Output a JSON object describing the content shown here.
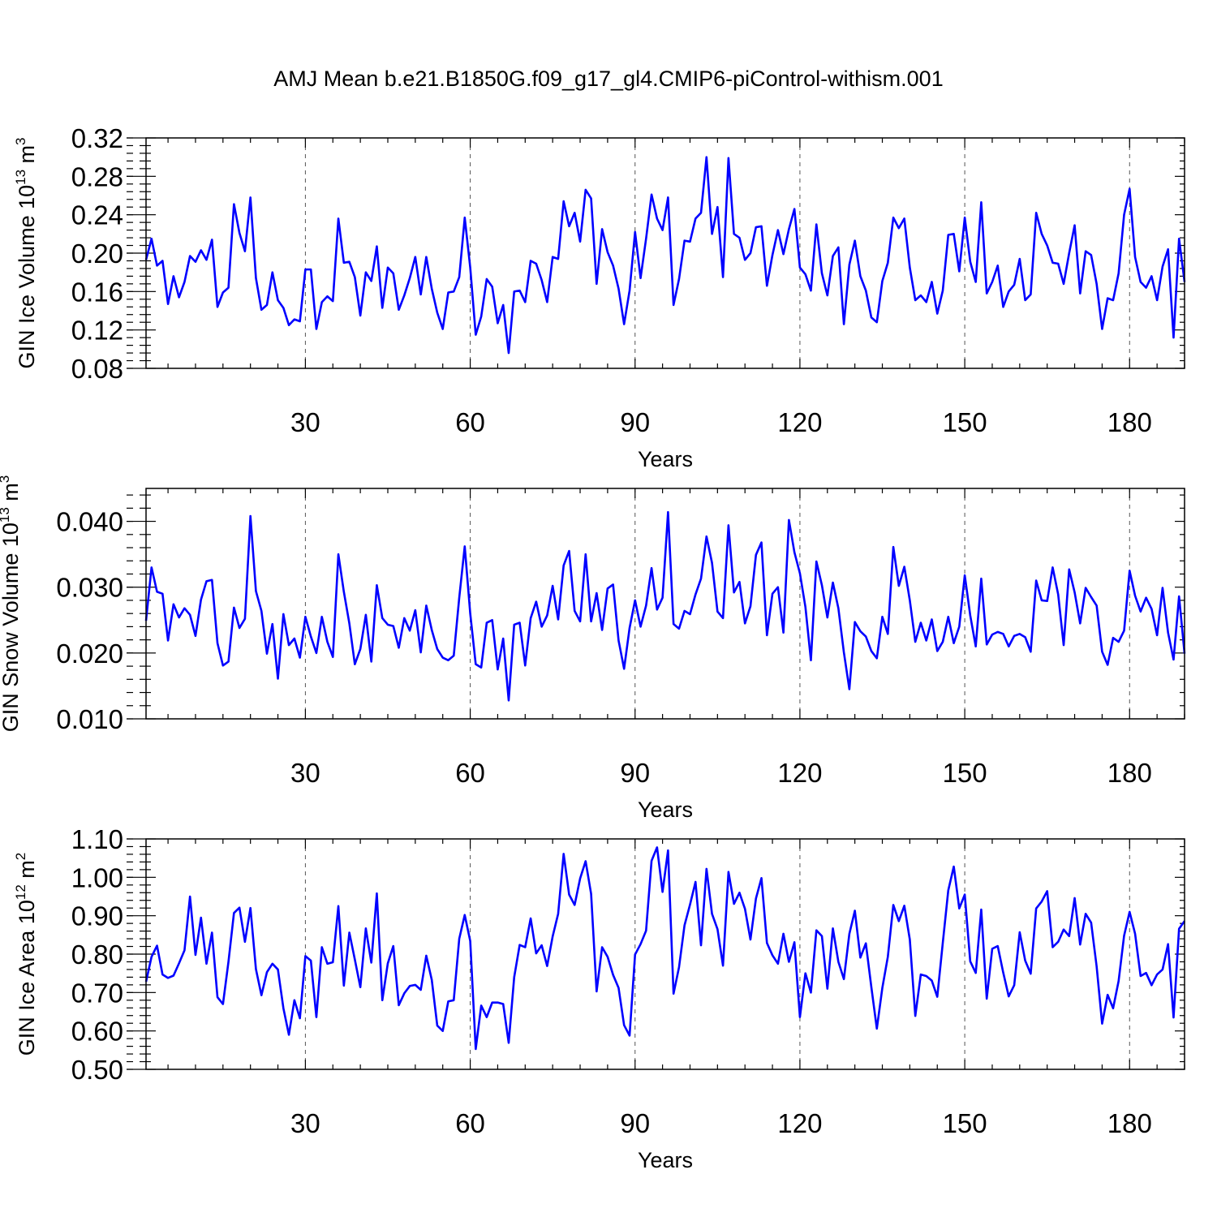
{
  "title": "AMJ Mean b.e21.B1850G.f09_g17_gl4.CMIP6-piControl-withism.001",
  "colors": {
    "series": "#0000ff",
    "frame": "#000000",
    "grid": "#555555"
  },
  "chart_data": [
    {
      "type": "line",
      "name": "ice-volume",
      "ylabel": "GIN Ice Volume 10",
      "ylabel_exp": "13",
      "ylabel_unit": " m",
      "ylabel_unit_exp": "3",
      "xlabel": "Years",
      "xlim": [
        1,
        190
      ],
      "ylim": [
        0.08,
        0.32
      ],
      "yticks": [
        "0.08",
        "0.12",
        "0.16",
        "0.20",
        "0.24",
        "0.28",
        "0.32"
      ],
      "xticks": [
        "30",
        "60",
        "90",
        "120",
        "150",
        "180"
      ],
      "grid_x": [
        30,
        60,
        90,
        120,
        150,
        180
      ],
      "series": [
        {
          "name": "GIN Ice Volume",
          "values": [
            0.193,
            0.215,
            0.187,
            0.192,
            0.147,
            0.176,
            0.154,
            0.17,
            0.197,
            0.191,
            0.203,
            0.193,
            0.214,
            0.144,
            0.159,
            0.164,
            0.251,
            0.221,
            0.202,
            0.258,
            0.174,
            0.141,
            0.146,
            0.18,
            0.151,
            0.143,
            0.125,
            0.131,
            0.129,
            0.183,
            0.183,
            0.121,
            0.149,
            0.155,
            0.15,
            0.236,
            0.19,
            0.191,
            0.175,
            0.135,
            0.18,
            0.171,
            0.207,
            0.143,
            0.185,
            0.179,
            0.141,
            0.156,
            0.174,
            0.196,
            0.157,
            0.196,
            0.163,
            0.138,
            0.121,
            0.159,
            0.16,
            0.175,
            0.237,
            0.185,
            0.115,
            0.134,
            0.173,
            0.165,
            0.127,
            0.146,
            0.096,
            0.16,
            0.161,
            0.149,
            0.192,
            0.189,
            0.172,
            0.149,
            0.196,
            0.194,
            0.254,
            0.228,
            0.242,
            0.212,
            0.266,
            0.257,
            0.168,
            0.225,
            0.201,
            0.187,
            0.163,
            0.126,
            0.161,
            0.222,
            0.174,
            0.215,
            0.261,
            0.236,
            0.224,
            0.258,
            0.146,
            0.173,
            0.213,
            0.212,
            0.236,
            0.242,
            0.3,
            0.22,
            0.248,
            0.175,
            0.299,
            0.22,
            0.216,
            0.193,
            0.2,
            0.227,
            0.228,
            0.166,
            0.198,
            0.224,
            0.199,
            0.225,
            0.246,
            0.185,
            0.178,
            0.161,
            0.23,
            0.179,
            0.156,
            0.197,
            0.206,
            0.126,
            0.188,
            0.213,
            0.176,
            0.161,
            0.133,
            0.128,
            0.171,
            0.19,
            0.237,
            0.226,
            0.236,
            0.185,
            0.151,
            0.156,
            0.149,
            0.17,
            0.137,
            0.161,
            0.219,
            0.22,
            0.181,
            0.237,
            0.191,
            0.17,
            0.253,
            0.158,
            0.17,
            0.187,
            0.144,
            0.16,
            0.167,
            0.194,
            0.151,
            0.157,
            0.242,
            0.22,
            0.208,
            0.19,
            0.189,
            0.168,
            0.2,
            0.229,
            0.158,
            0.202,
            0.198,
            0.168,
            0.121,
            0.153,
            0.151,
            0.179,
            0.24,
            0.267,
            0.196,
            0.17,
            0.164,
            0.176,
            0.151,
            0.186,
            0.204,
            0.112,
            0.215,
            0.17
          ]
        }
      ]
    },
    {
      "type": "line",
      "name": "snow-volume",
      "ylabel": "GIN Snow Volume 10",
      "ylabel_exp": "13",
      "ylabel_unit": " m",
      "ylabel_unit_exp": "3",
      "xlabel": "Years",
      "xlim": [
        1,
        190
      ],
      "ylim": [
        0.01,
        0.045
      ],
      "yticks": [
        "0.010",
        "0.020",
        "0.030",
        "0.040"
      ],
      "ytick_values": [
        0.01,
        0.02,
        0.03,
        0.04
      ],
      "xticks": [
        "30",
        "60",
        "90",
        "120",
        "150",
        "180"
      ],
      "grid_x": [
        30,
        60,
        90,
        120,
        150,
        180
      ],
      "series": [
        {
          "name": "GIN Snow Volume",
          "values": [
            0.0249,
            0.033,
            0.0293,
            0.029,
            0.0219,
            0.0274,
            0.0254,
            0.0268,
            0.0258,
            0.0226,
            0.0281,
            0.0309,
            0.0311,
            0.0215,
            0.0181,
            0.0187,
            0.0269,
            0.0238,
            0.0252,
            0.0408,
            0.0294,
            0.0264,
            0.0199,
            0.0244,
            0.0161,
            0.0259,
            0.0212,
            0.0222,
            0.0193,
            0.0255,
            0.0225,
            0.02,
            0.0255,
            0.0217,
            0.0194,
            0.035,
            0.0293,
            0.0245,
            0.0183,
            0.0206,
            0.0258,
            0.0187,
            0.0303,
            0.0253,
            0.0243,
            0.0241,
            0.0208,
            0.0253,
            0.0234,
            0.0265,
            0.0201,
            0.0272,
            0.0235,
            0.0206,
            0.0193,
            0.0189,
            0.0196,
            0.0284,
            0.0362,
            0.026,
            0.0183,
            0.0178,
            0.0246,
            0.025,
            0.0175,
            0.0222,
            0.0128,
            0.0243,
            0.0246,
            0.0181,
            0.0253,
            0.0278,
            0.024,
            0.0257,
            0.0302,
            0.0251,
            0.0333,
            0.0355,
            0.0264,
            0.0248,
            0.035,
            0.0248,
            0.0291,
            0.0235,
            0.0298,
            0.0304,
            0.0219,
            0.0176,
            0.0238,
            0.028,
            0.024,
            0.0272,
            0.0329,
            0.0266,
            0.0284,
            0.0414,
            0.0244,
            0.0237,
            0.0264,
            0.0259,
            0.0289,
            0.0313,
            0.0377,
            0.0337,
            0.0263,
            0.0253,
            0.0394,
            0.0292,
            0.0308,
            0.0245,
            0.0271,
            0.0349,
            0.0368,
            0.0227,
            0.029,
            0.03,
            0.0231,
            0.0402,
            0.0353,
            0.0321,
            0.027,
            0.0189,
            0.0339,
            0.0303,
            0.0254,
            0.0307,
            0.0268,
            0.0201,
            0.0145,
            0.0247,
            0.0233,
            0.0225,
            0.0203,
            0.0192,
            0.0255,
            0.0229,
            0.0361,
            0.0302,
            0.0331,
            0.028,
            0.0217,
            0.0246,
            0.0219,
            0.0251,
            0.0203,
            0.0217,
            0.0255,
            0.0215,
            0.024,
            0.0318,
            0.0257,
            0.021,
            0.0313,
            0.0213,
            0.0228,
            0.0232,
            0.0229,
            0.021,
            0.0226,
            0.0229,
            0.0224,
            0.0202,
            0.031,
            0.028,
            0.0279,
            0.033,
            0.0289,
            0.0212,
            0.0327,
            0.0292,
            0.0245,
            0.0299,
            0.0285,
            0.0272,
            0.0202,
            0.0182,
            0.0223,
            0.0217,
            0.0234,
            0.0325,
            0.0287,
            0.0263,
            0.0284,
            0.0267,
            0.0227,
            0.0299,
            0.0231,
            0.019,
            0.0286,
            0.0199
          ]
        }
      ]
    },
    {
      "type": "line",
      "name": "ice-area",
      "ylabel": "GIN Ice Area 10",
      "ylabel_exp": "12",
      "ylabel_unit": " m",
      "ylabel_unit_exp": "2",
      "xlabel": "Years",
      "xlim": [
        1,
        190
      ],
      "ylim": [
        0.5,
        1.1
      ],
      "yticks": [
        "0.50",
        "0.60",
        "0.70",
        "0.80",
        "0.90",
        "1.00",
        "1.10"
      ],
      "xticks": [
        "30",
        "60",
        "90",
        "120",
        "150",
        "180"
      ],
      "grid_x": [
        30,
        60,
        90,
        120,
        150,
        180
      ],
      "series": [
        {
          "name": "GIN Ice Area",
          "values": [
            0.728,
            0.793,
            0.822,
            0.747,
            0.738,
            0.744,
            0.776,
            0.81,
            0.95,
            0.798,
            0.895,
            0.775,
            0.856,
            0.688,
            0.67,
            0.78,
            0.907,
            0.921,
            0.832,
            0.92,
            0.761,
            0.693,
            0.753,
            0.775,
            0.76,
            0.659,
            0.59,
            0.68,
            0.633,
            0.795,
            0.783,
            0.636,
            0.818,
            0.775,
            0.779,
            0.925,
            0.718,
            0.856,
            0.786,
            0.714,
            0.867,
            0.778,
            0.958,
            0.68,
            0.776,
            0.821,
            0.667,
            0.698,
            0.717,
            0.72,
            0.707,
            0.796,
            0.733,
            0.614,
            0.6,
            0.677,
            0.68,
            0.84,
            0.902,
            0.834,
            0.553,
            0.666,
            0.636,
            0.674,
            0.674,
            0.67,
            0.569,
            0.74,
            0.824,
            0.818,
            0.893,
            0.802,
            0.823,
            0.769,
            0.846,
            0.905,
            1.061,
            0.955,
            0.928,
            0.997,
            1.042,
            0.957,
            0.703,
            0.818,
            0.793,
            0.746,
            0.712,
            0.615,
            0.588,
            0.799,
            0.826,
            0.861,
            1.043,
            1.078,
            0.962,
            1.07,
            0.697,
            0.766,
            0.875,
            0.929,
            0.988,
            0.823,
            1.022,
            0.905,
            0.865,
            0.77,
            1.014,
            0.931,
            0.96,
            0.918,
            0.838,
            0.945,
            0.998,
            0.829,
            0.797,
            0.775,
            0.853,
            0.78,
            0.831,
            0.636,
            0.75,
            0.7,
            0.862,
            0.847,
            0.71,
            0.867,
            0.78,
            0.735,
            0.853,
            0.913,
            0.791,
            0.828,
            0.714,
            0.606,
            0.712,
            0.793,
            0.928,
            0.886,
            0.926,
            0.838,
            0.639,
            0.747,
            0.743,
            0.731,
            0.689,
            0.829,
            0.966,
            1.028,
            0.919,
            0.955,
            0.781,
            0.751,
            0.916,
            0.684,
            0.814,
            0.821,
            0.752,
            0.69,
            0.719,
            0.857,
            0.783,
            0.749,
            0.919,
            0.937,
            0.964,
            0.818,
            0.832,
            0.864,
            0.847,
            0.946,
            0.825,
            0.905,
            0.882,
            0.768,
            0.619,
            0.694,
            0.659,
            0.73,
            0.848,
            0.91,
            0.853,
            0.743,
            0.751,
            0.719,
            0.747,
            0.76,
            0.826,
            0.635,
            0.866,
            0.886
          ]
        }
      ]
    }
  ]
}
